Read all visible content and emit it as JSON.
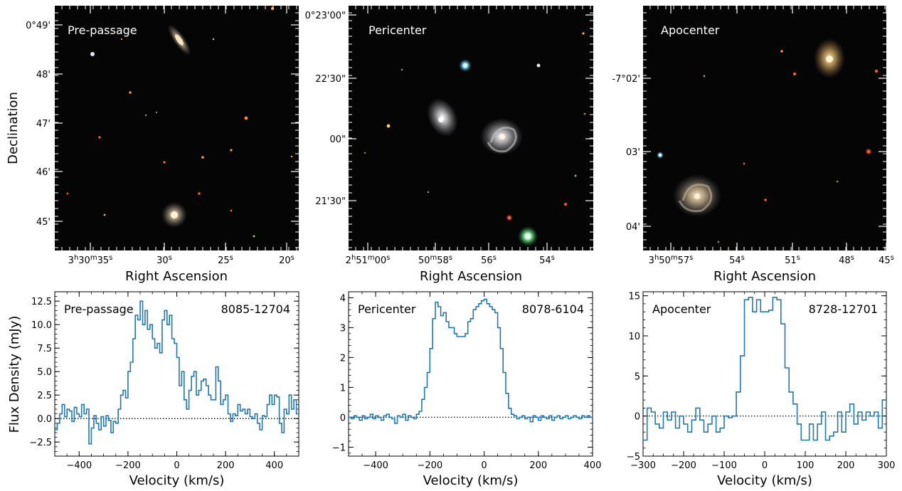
{
  "figure": {
    "ylabel_images": "Declination",
    "ylabel_spectra": "Flux Density (mJy)"
  },
  "chart_data": [
    {
      "type": "image",
      "panel": "Pre-passage",
      "title": "Pre-passage",
      "xlabel": "Right Ascension",
      "ylabel": "Declination",
      "xticks": [
        "3h30m35s",
        "30s",
        "25s",
        "20s"
      ],
      "yticks": [
        "0°49'",
        "48'",
        "47'",
        "46'",
        "45'"
      ],
      "legend": "",
      "galaxies": [
        {
          "role": "companion",
          "shape": "edge-on spiral",
          "color": "#d9c7a0"
        },
        {
          "role": "target",
          "shape": "face-on spiral",
          "color": "#e6d6b4"
        }
      ]
    },
    {
      "type": "image",
      "panel": "Pericenter",
      "title": "Pericenter",
      "xlabel": "Right Ascension",
      "ylabel": "",
      "xticks": [
        "2h51m00s",
        "50m58s",
        "56s",
        "54s"
      ],
      "yticks": [
        "0°23'00\"",
        "22'30\"",
        "00\"",
        "21'30\""
      ],
      "galaxies": [
        {
          "role": "companion",
          "shape": "spiral",
          "color": "#e8dcc6"
        },
        {
          "role": "target",
          "shape": "face-on spiral",
          "color": "#d8cdb8"
        }
      ]
    },
    {
      "type": "image",
      "panel": "Apocenter",
      "title": "Apocenter",
      "xlabel": "Right Ascension",
      "ylabel": "",
      "xticks": [
        "3h50m57s",
        "54s",
        "51s",
        "48s",
        "45s"
      ],
      "yticks": [
        "-7°02'",
        "03'",
        "04'"
      ],
      "galaxies": [
        {
          "role": "companion",
          "shape": "elliptical",
          "color": "#f0c878"
        },
        {
          "role": "target",
          "shape": "face-on spiral",
          "color": "#e3d2a8"
        }
      ]
    },
    {
      "type": "line",
      "step": true,
      "title": "Pre-passage",
      "id": "8085-12704",
      "xlabel": "Velocity (km/s)",
      "ylabel": "Flux Density (mJy)",
      "xlim": [
        -500,
        500
      ],
      "ylim": [
        -4,
        13.5
      ],
      "xticks": [
        -400,
        -200,
        0,
        200,
        400
      ],
      "yticks": [
        -2.5,
        0.0,
        2.5,
        5.0,
        7.5,
        10.0,
        12.5
      ],
      "ytick_labels": [
        "−2.5",
        "0.0",
        "2.5",
        "5.0",
        "7.5",
        "10.0",
        "12.5"
      ],
      "xtick_labels": [
        "−400",
        "−200",
        "0",
        "200",
        "400"
      ],
      "zero_line": true,
      "color": "#1f77b4",
      "series": [
        {
          "x": [
            -500,
            -490,
            -480,
            -470,
            -460,
            -450,
            -440,
            -430,
            -420,
            -410,
            -400,
            -390,
            -380,
            -370,
            -360,
            -350,
            -340,
            -330,
            -320,
            -310,
            -300,
            -290,
            -280,
            -270,
            -260,
            -250,
            -240,
            -230,
            -220,
            -210,
            -200,
            -190,
            -180,
            -170,
            -160,
            -150,
            -140,
            -130,
            -120,
            -110,
            -100,
            -90,
            -80,
            -70,
            -60,
            -50,
            -40,
            -30,
            -20,
            -10,
            0,
            10,
            20,
            30,
            40,
            50,
            60,
            70,
            80,
            90,
            100,
            110,
            120,
            130,
            140,
            150,
            160,
            170,
            180,
            190,
            200,
            210,
            220,
            230,
            240,
            250,
            260,
            270,
            280,
            290,
            300,
            310,
            320,
            330,
            340,
            350,
            360,
            370,
            380,
            390,
            400,
            410,
            420,
            430,
            440,
            450,
            460,
            470,
            480,
            490
          ],
          "values": [
            -1.2,
            -0.5,
            0.5,
            1.5,
            0.2,
            1.0,
            0.8,
            -0.3,
            1.2,
            0.5,
            0.2,
            1.5,
            0.5,
            1.0,
            -2.7,
            -1.0,
            0.3,
            -0.5,
            -1.2,
            0.2,
            -0.8,
            0.3,
            -0.2,
            -1.5,
            -0.3,
            -0.5,
            1.0,
            2.5,
            3.0,
            2.2,
            5.0,
            6.0,
            8.5,
            11.0,
            10.5,
            12.5,
            10.0,
            11.5,
            9.5,
            10.0,
            8.5,
            7.5,
            8.0,
            7.0,
            10.5,
            11.5,
            10.0,
            11.0,
            8.5,
            8.0,
            6.5,
            3.5,
            5.0,
            2.0,
            1.0,
            3.0,
            4.5,
            5.0,
            2.5,
            3.0,
            4.0,
            4.2,
            3.5,
            2.5,
            2.0,
            2.0,
            5.5,
            4.0,
            1.5,
            2.0,
            2.5,
            0.5,
            -0.3,
            0.5,
            0.3,
            1.5,
            0.8,
            1.0,
            0.5,
            1.0,
            0.2,
            0.0,
            0.5,
            -0.5,
            -1.2,
            0.3,
            0.2,
            1.5,
            2.5,
            1.5,
            2.5,
            2.3,
            -0.5,
            -1.5,
            1.0,
            0.5,
            2.5,
            1.0,
            2.0,
            0.5
          ]
        }
      ]
    },
    {
      "type": "line",
      "step": true,
      "title": "Pericenter",
      "id": "8078-6104",
      "xlabel": "Velocity (km/s)",
      "ylabel": "",
      "xlim": [
        -500,
        400
      ],
      "ylim": [
        -1.3,
        4.2
      ],
      "xticks": [
        -400,
        -200,
        0,
        200,
        400
      ],
      "xtick_labels": [
        "−400",
        "−200",
        "0",
        "200",
        "400"
      ],
      "yticks": [
        -1,
        0,
        1,
        2,
        3,
        4
      ],
      "ytick_labels": [
        "−1",
        "0",
        "1",
        "2",
        "3",
        "4"
      ],
      "zero_line": true,
      "color": "#1f77b4",
      "series": [
        {
          "x": [
            -500,
            -490,
            -480,
            -470,
            -460,
            -450,
            -440,
            -430,
            -420,
            -410,
            -400,
            -390,
            -380,
            -370,
            -360,
            -350,
            -340,
            -330,
            -320,
            -310,
            -300,
            -290,
            -280,
            -270,
            -260,
            -250,
            -240,
            -230,
            -220,
            -210,
            -200,
            -190,
            -180,
            -170,
            -160,
            -150,
            -140,
            -130,
            -120,
            -110,
            -100,
            -90,
            -80,
            -70,
            -60,
            -50,
            -40,
            -30,
            -20,
            -10,
            0,
            10,
            20,
            30,
            40,
            50,
            60,
            70,
            80,
            90,
            100,
            110,
            120,
            130,
            140,
            150,
            160,
            170,
            180,
            190,
            200,
            210,
            220,
            230,
            240,
            250,
            260,
            270,
            280,
            290,
            300,
            310,
            320,
            330,
            340,
            350,
            360,
            370,
            380,
            390
          ],
          "values": [
            0.0,
            -0.05,
            0.05,
            0.0,
            -0.1,
            0.05,
            -0.05,
            0.0,
            0.1,
            -0.05,
            0.05,
            0.0,
            -0.1,
            0.05,
            0.1,
            0.0,
            -0.05,
            -0.2,
            0.05,
            0.0,
            0.1,
            -0.1,
            0.05,
            0.0,
            -0.05,
            0.1,
            0.2,
            0.6,
            1.0,
            1.5,
            2.3,
            3.3,
            3.85,
            3.7,
            3.4,
            3.5,
            3.2,
            3.0,
            3.0,
            2.8,
            2.7,
            2.7,
            2.7,
            2.8,
            3.2,
            3.3,
            3.6,
            3.7,
            3.8,
            3.9,
            3.95,
            3.8,
            3.7,
            3.6,
            3.5,
            3.0,
            2.3,
            1.5,
            0.8,
            0.3,
            0.1,
            0.05,
            -0.05,
            0.0,
            0.05,
            -0.05,
            0.0,
            -0.15,
            0.05,
            0.0,
            -0.1,
            0.05,
            0.0,
            -0.05,
            0.05,
            -0.1,
            0.0,
            0.05,
            -0.05,
            0.0,
            0.05,
            -0.05,
            0.0,
            0.05,
            0.0,
            -0.05,
            0.05,
            0.0,
            0.05,
            0.0
          ]
        }
      ]
    },
    {
      "type": "line",
      "step": true,
      "title": "Apocenter",
      "id": "8728-12701",
      "xlabel": "Velocity (km/s)",
      "ylabel": "",
      "xlim": [
        -300,
        300
      ],
      "ylim": [
        -5,
        15.5
      ],
      "xticks": [
        -300,
        -200,
        -100,
        0,
        100,
        200,
        300
      ],
      "xtick_labels": [
        "−300",
        "−200",
        "−100",
        "0",
        "100",
        "200",
        "300"
      ],
      "yticks": [
        -5,
        0,
        5,
        10,
        15
      ],
      "ytick_labels": [
        "−5",
        "0",
        "5",
        "10",
        "15"
      ],
      "zero_line": true,
      "color": "#1f77b4",
      "series": [
        {
          "x": [
            -300,
            -290,
            -280,
            -270,
            -260,
            -250,
            -240,
            -230,
            -220,
            -210,
            -200,
            -190,
            -180,
            -170,
            -160,
            -150,
            -140,
            -130,
            -120,
            -110,
            -100,
            -90,
            -80,
            -70,
            -60,
            -50,
            -40,
            -30,
            -20,
            -10,
            0,
            10,
            20,
            30,
            40,
            50,
            60,
            70,
            80,
            90,
            100,
            110,
            120,
            130,
            140,
            150,
            160,
            170,
            180,
            190,
            200,
            210,
            220,
            230,
            240,
            250,
            260,
            270,
            280,
            290
          ],
          "values": [
            -3.0,
            1.0,
            0.5,
            -1.0,
            -1.5,
            0.5,
            -0.5,
            0.5,
            -1.5,
            0.0,
            -1.0,
            -2.0,
            -0.5,
            1.0,
            -0.5,
            -2.0,
            -1.0,
            0.0,
            -2.0,
            -1.5,
            0.0,
            -0.2,
            0.0,
            3.0,
            7.5,
            14.5,
            14.8,
            13.0,
            14.5,
            13.0,
            13.0,
            13.2,
            14.8,
            14.5,
            11.5,
            6.0,
            3.0,
            1.5,
            -1.0,
            -3.0,
            -3.0,
            -1.0,
            -3.0,
            -1.0,
            0.5,
            -3.0,
            -2.5,
            -2.0,
            0.5,
            -2.0,
            0.5,
            1.5,
            -1.0,
            0.5,
            -0.5,
            0.5,
            0.0,
            0.5,
            -1.5,
            2.0
          ]
        }
      ]
    }
  ]
}
